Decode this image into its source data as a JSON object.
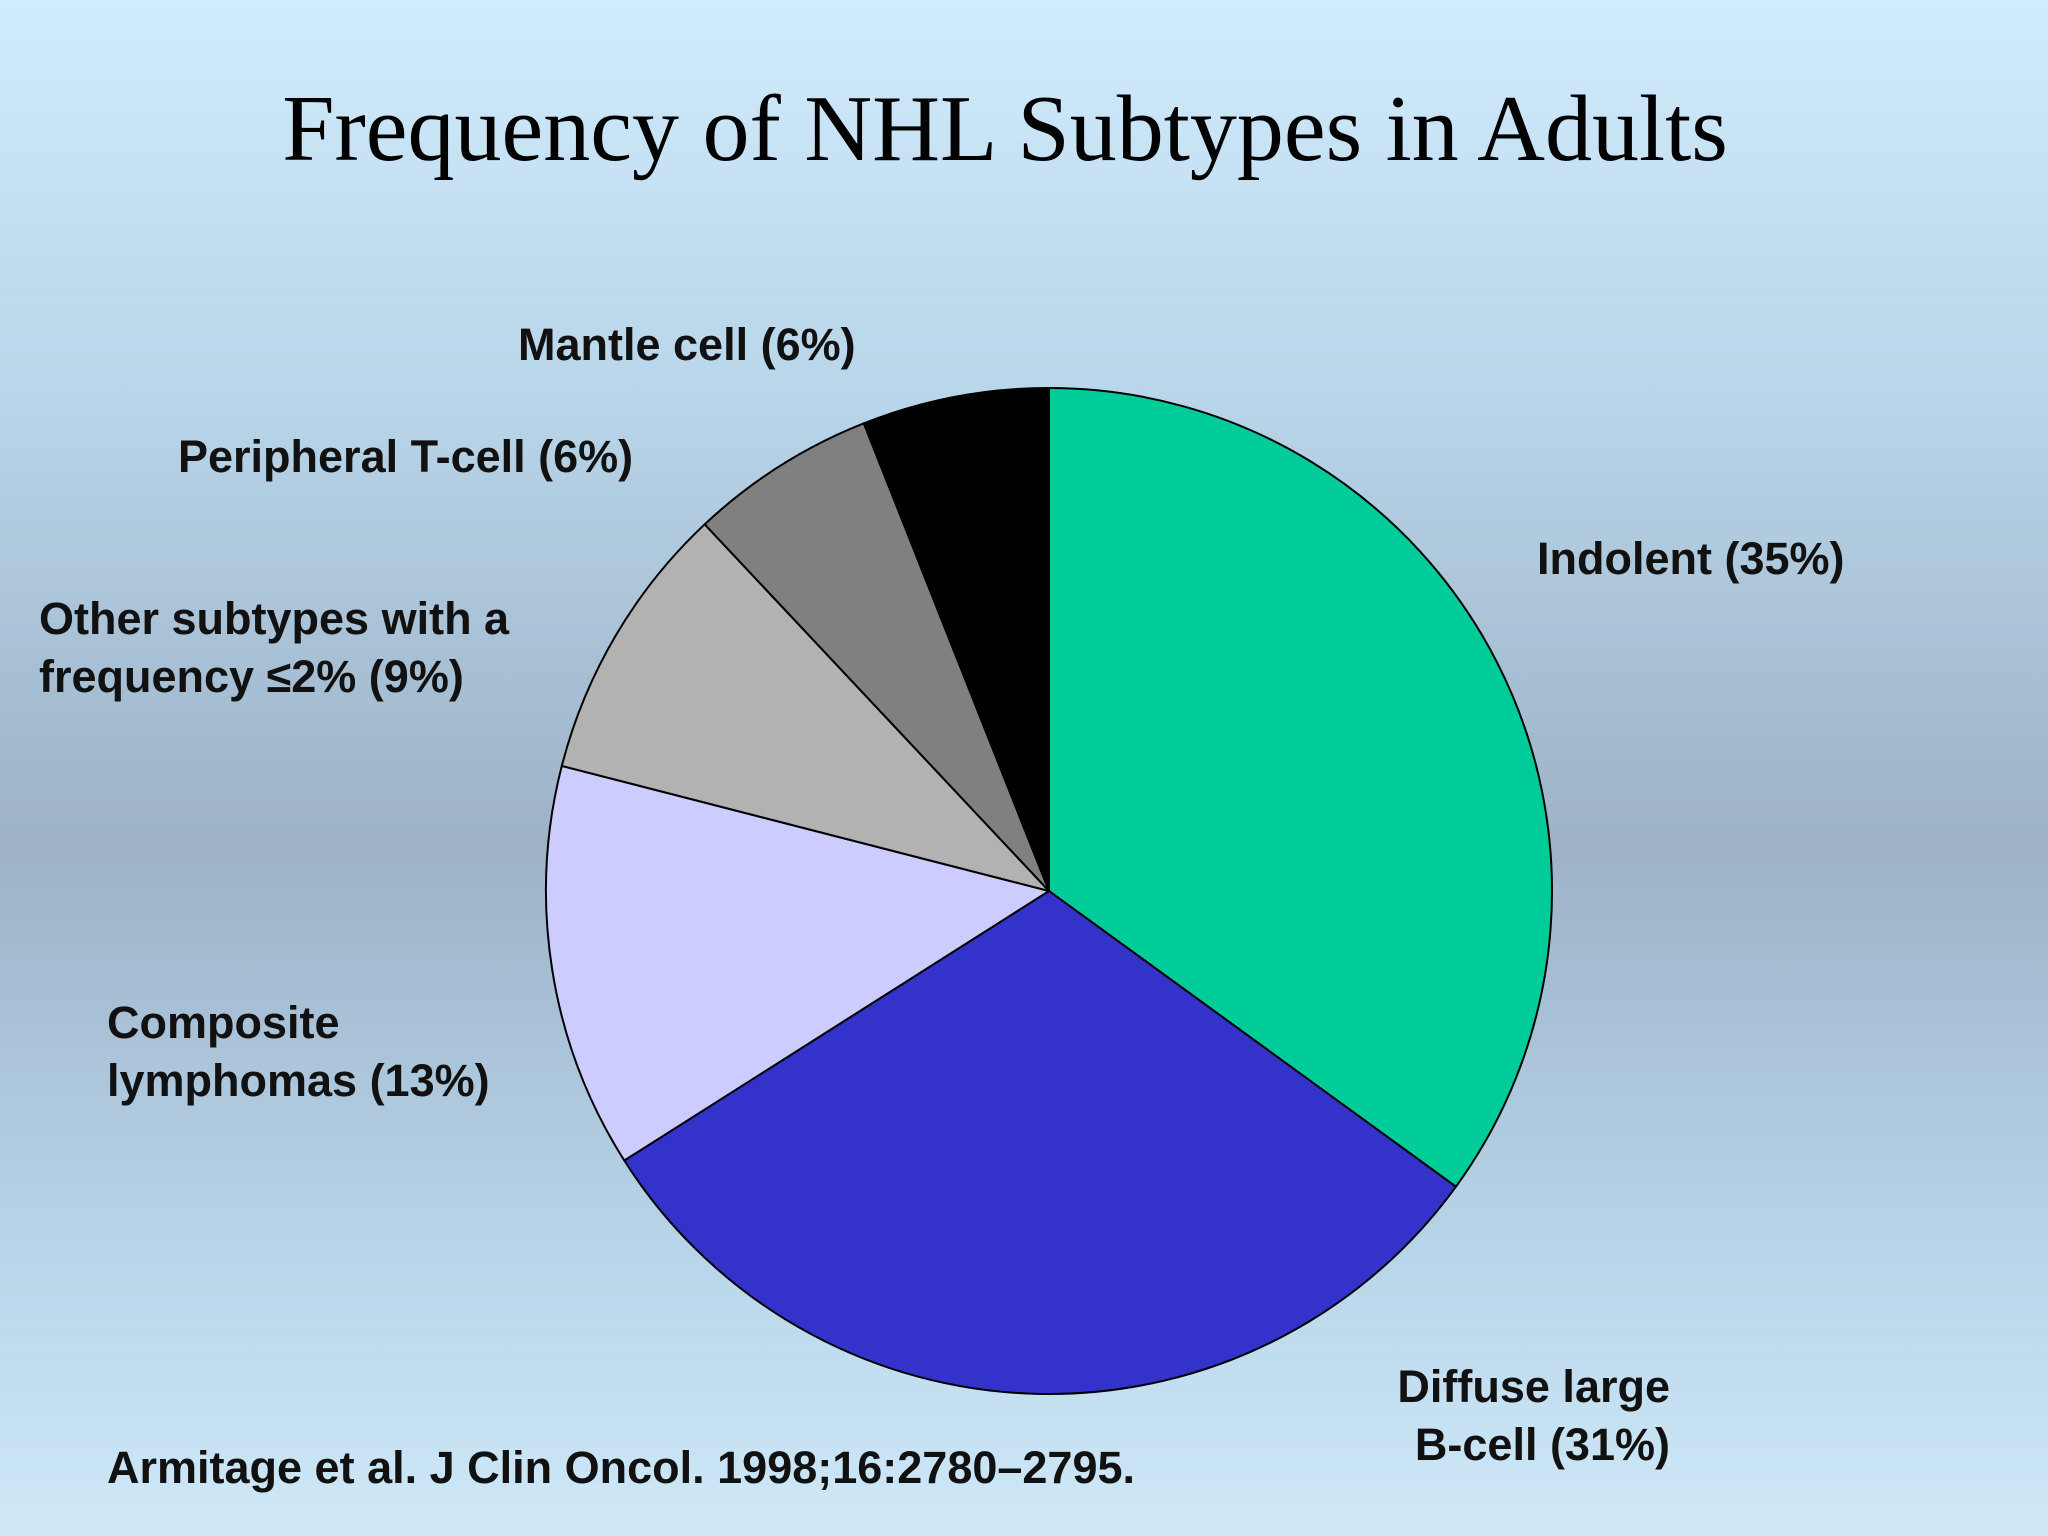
{
  "chart_data": {
    "type": "pie",
    "title": "Frequency of NHL Subtypes in Adults",
    "categories": [
      "Indolent (35%)",
      "Diffuse large\nB-cell (31%)",
      "Composite\nlymphomas (13%)",
      "Other subtypes with a\nfrequency ≤2% (9%)",
      "Peripheral T-cell (6%)",
      "Mantle cell (6%)"
    ],
    "values": [
      35,
      31,
      13,
      9,
      6,
      6
    ],
    "colors": [
      "#00cc99",
      "#3333cc",
      "#ccccff",
      "#b2b2b2",
      "#808080",
      "#000000"
    ],
    "source": "Armitage et al. J Clin Oncol. 1998;16:2780–2795."
  }
}
